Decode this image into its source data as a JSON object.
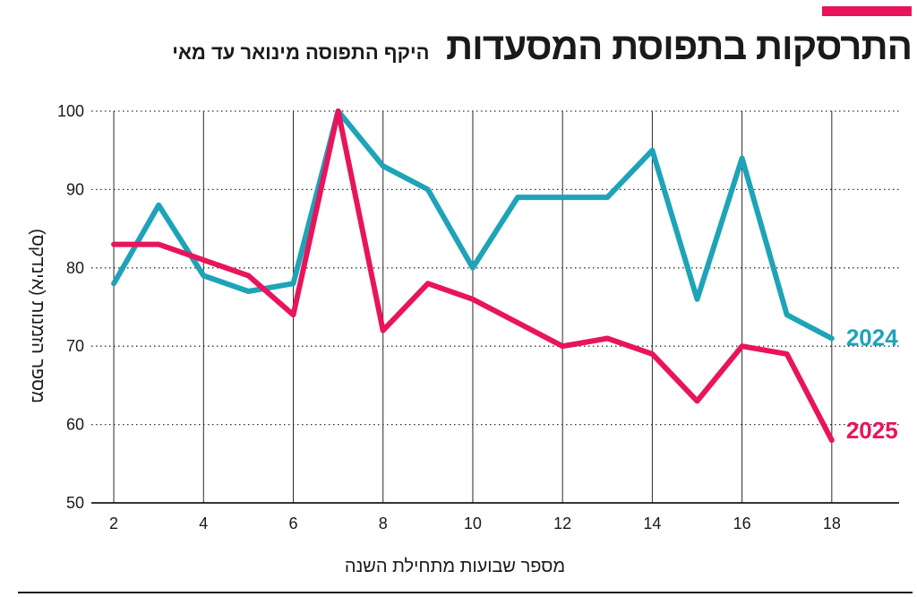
{
  "header": {
    "title": "התרסקות בתפוסת המסעדות",
    "subtitle": "היקף התפוסה מינואר עד מאי",
    "accent_color": "#e8145c"
  },
  "chart_data": {
    "type": "line",
    "xlabel": "מספר שבועות מתחילת השנה",
    "ylabel": "מספר הזמנות (אינדקס)",
    "x_ticks": [
      2,
      4,
      6,
      8,
      10,
      12,
      14,
      16,
      18
    ],
    "y_ticks": [
      50,
      60,
      70,
      80,
      90,
      100
    ],
    "xlim": [
      1.5,
      19.5
    ],
    "ylim": [
      50,
      100
    ],
    "grid": "vertical-solid, horizontal-dotted",
    "x": [
      2,
      3,
      4,
      5,
      6,
      7,
      8,
      9,
      10,
      11,
      12,
      13,
      14,
      15,
      16,
      17,
      18
    ],
    "series": [
      {
        "name": "2024",
        "color": "#1ea3b8",
        "values": [
          78,
          88,
          79,
          77,
          78,
          100,
          93,
          90,
          80,
          89,
          89,
          89,
          95,
          76,
          94,
          74,
          71
        ]
      },
      {
        "name": "2025",
        "color": "#e8145c",
        "values": [
          83,
          83,
          81,
          79,
          74,
          100,
          72,
          78,
          76,
          73,
          70,
          71,
          69,
          63,
          70,
          69,
          58
        ]
      }
    ]
  }
}
